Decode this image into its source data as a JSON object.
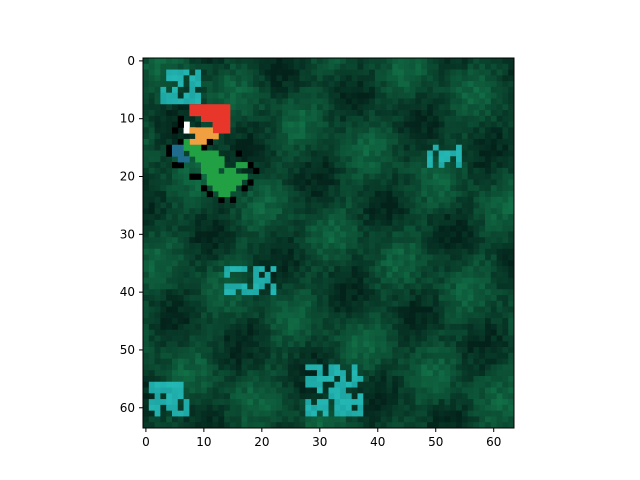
{
  "figure": {
    "image_size": [
      64,
      64
    ],
    "xlim": [
      -0.5,
      63.5
    ],
    "ylim": [
      63.5,
      -0.5
    ],
    "x_ticks": [
      0,
      10,
      20,
      30,
      40,
      50,
      60
    ],
    "y_ticks": [
      0,
      10,
      20,
      30,
      40,
      50,
      60
    ],
    "x_tick_labels": [
      "0",
      "10",
      "20",
      "30",
      "40",
      "50",
      "60"
    ],
    "y_tick_labels": [
      "0",
      "10",
      "20",
      "30",
      "40",
      "50",
      "60"
    ],
    "colors": {
      "forest_dark": "#03221a",
      "forest_mid": "#0b4a32",
      "forest_light": "#137a4c",
      "water_teal": "#1a9c9a",
      "water_bright": "#28c4c0",
      "sprite_red": "#e8362a",
      "sprite_orange": "#f0a040",
      "sprite_white": "#ffffff",
      "sprite_green": "#22a044",
      "sprite_blue": "#1f6c8c",
      "sprite_black": "#000000"
    },
    "content": "forest texture with a pixel-art sprite (red hat, green body) near top-left"
  }
}
